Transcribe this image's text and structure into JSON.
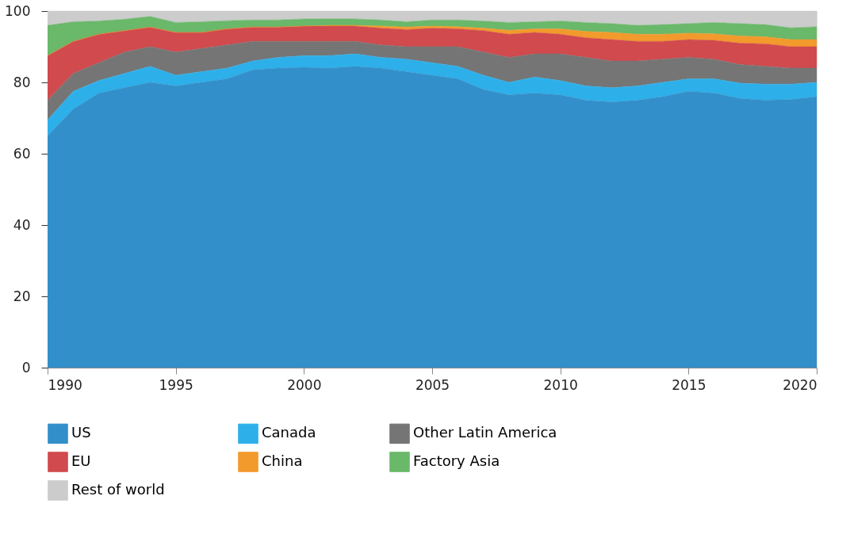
{
  "chart_data": {
    "type": "area",
    "stacked": true,
    "x": [
      1990,
      1991,
      1992,
      1993,
      1994,
      1995,
      1996,
      1997,
      1998,
      1999,
      2000,
      2001,
      2002,
      2003,
      2004,
      2005,
      2006,
      2007,
      2008,
      2009,
      2010,
      2011,
      2012,
      2013,
      2014,
      2015,
      2016,
      2017,
      2018,
      2019,
      2020
    ],
    "series": [
      {
        "name": "US",
        "color": "#338fc9",
        "values": [
          65,
          72.5,
          77,
          78.5,
          80,
          79,
          80,
          81,
          83.5,
          84,
          84.2,
          84,
          84.5,
          84,
          83,
          82,
          81,
          78,
          76.5,
          77,
          76.5,
          75,
          74.5,
          75,
          76,
          77.5,
          77,
          75.5,
          75,
          75.2,
          76
        ]
      },
      {
        "name": "Canada",
        "color": "#2db0ea",
        "values": [
          4.5,
          5,
          3.5,
          4,
          4.5,
          3,
          3,
          3,
          2.5,
          3,
          3.3,
          3.5,
          3.5,
          3,
          3.5,
          3.5,
          3.5,
          4,
          3.5,
          4.5,
          4,
          4,
          4,
          4,
          4,
          3.5,
          4,
          4.3,
          4.5,
          4.3,
          4
        ]
      },
      {
        "name": "Other Latin America",
        "color": "#757575",
        "values": [
          5.5,
          5,
          5,
          6,
          5.5,
          6.5,
          6.5,
          6.5,
          5.5,
          4.5,
          4,
          4,
          3.5,
          3.5,
          3.5,
          4.5,
          5.5,
          6.5,
          7,
          6.5,
          7.5,
          8,
          7.5,
          7,
          6.5,
          6,
          5.5,
          5.2,
          5,
          4.5,
          4
        ]
      },
      {
        "name": "EU",
        "color": "#d04a4e",
        "values": [
          12.5,
          9,
          8,
          6,
          5.5,
          5.5,
          4.5,
          4.5,
          4,
          4,
          4.3,
          4.3,
          4.3,
          4.7,
          4.8,
          5.2,
          5,
          6,
          6.5,
          6,
          5.5,
          5.5,
          6,
          5.5,
          5,
          5,
          5.3,
          6,
          6.3,
          6,
          6
        ]
      },
      {
        "name": "China",
        "color": "#f39a2c",
        "values": [
          0,
          0,
          0,
          0,
          0,
          0,
          0,
          0,
          0,
          0,
          0,
          0.2,
          0.2,
          0.6,
          0.7,
          0.6,
          0.6,
          0.7,
          1.1,
          1,
          1.5,
          1.8,
          2,
          2,
          2,
          1.8,
          1.8,
          2,
          2,
          2,
          2
        ]
      },
      {
        "name": "Factory Asia",
        "color": "#6ab86a",
        "values": [
          8.5,
          5.5,
          3.7,
          3.2,
          3,
          2.8,
          3,
          2.3,
          2,
          2,
          2,
          1.8,
          1.8,
          1.7,
          1.5,
          1.7,
          1.9,
          2,
          2.2,
          2,
          2.2,
          2.5,
          2.5,
          2.5,
          2.7,
          2.7,
          3.2,
          3.5,
          3.4,
          3.3,
          3.6
        ]
      },
      {
        "name": "Rest of world",
        "color": "#cccccc",
        "values": [
          4,
          3,
          2.8,
          2.3,
          1.5,
          3.2,
          3,
          2.7,
          2.5,
          2.5,
          2.2,
          2.2,
          2.2,
          2.5,
          3,
          2.5,
          2.5,
          2.8,
          3.2,
          3,
          2.8,
          3.2,
          3.5,
          4,
          3.8,
          3.5,
          3.2,
          3.5,
          3.8,
          4.7,
          4.4
        ]
      }
    ],
    "xlim": [
      1990,
      2020
    ],
    "xticks": [
      1990,
      1995,
      2000,
      2005,
      2010,
      2015,
      2020
    ],
    "ylim": [
      0,
      100
    ],
    "yticks": [
      0,
      20,
      40,
      60,
      80,
      100
    ],
    "grid": false,
    "legend": "bottom"
  }
}
